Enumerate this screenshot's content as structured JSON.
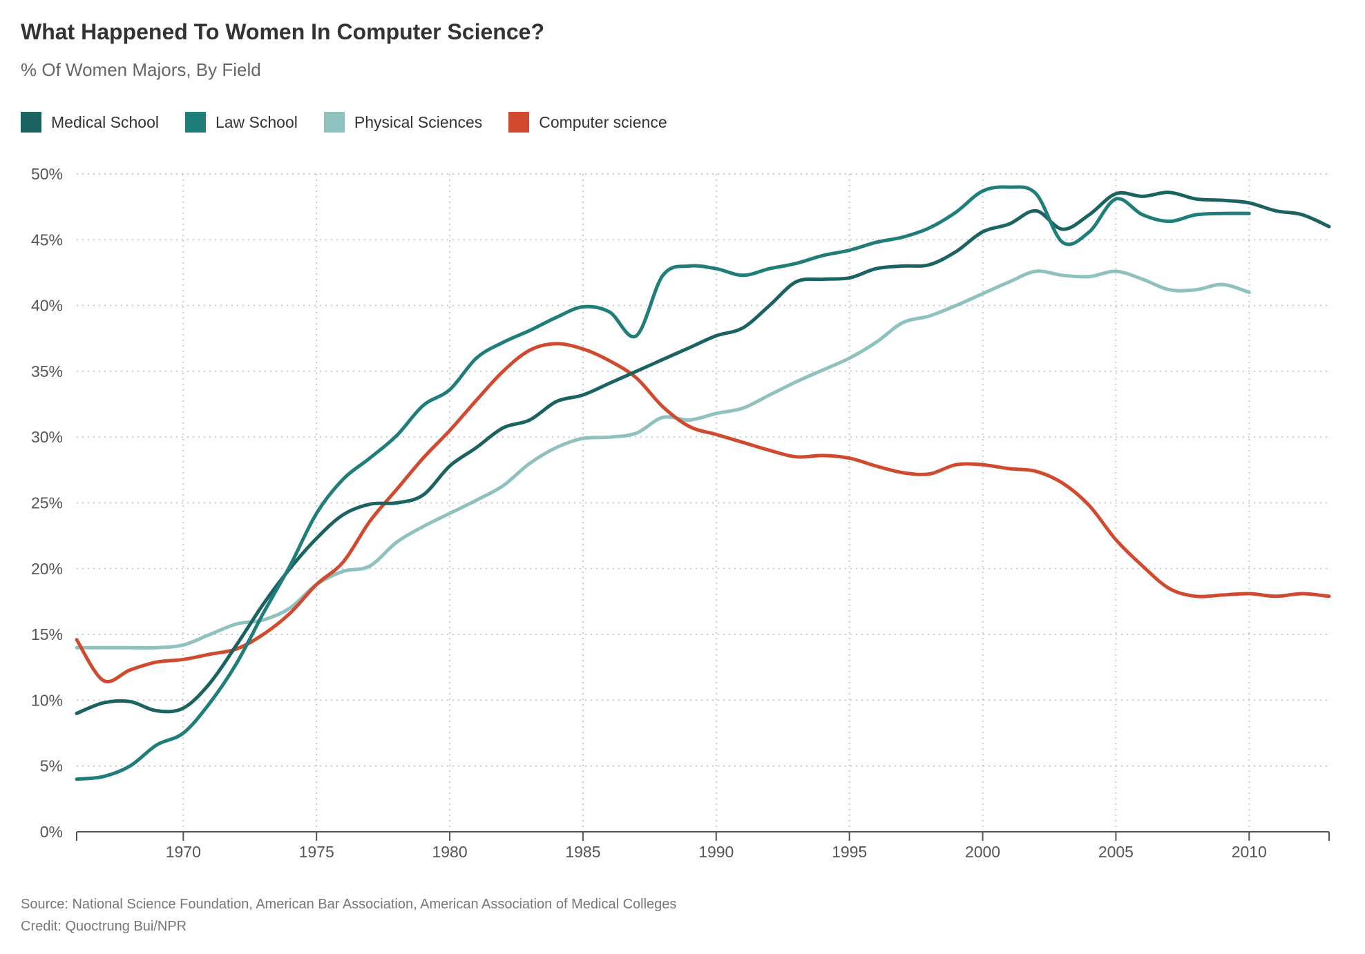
{
  "header": {
    "title": "What Happened To Women In Computer Science?",
    "subtitle": "% Of Women Majors, By Field"
  },
  "legend": [
    {
      "label": "Medical School",
      "color": "#1b6360"
    },
    {
      "label": "Law School",
      "color": "#1f7d7a"
    },
    {
      "label": "Physical Sciences",
      "color": "#8fc1bf"
    },
    {
      "label": "Computer science",
      "color": "#d04a2f"
    }
  ],
  "footer": {
    "source": "Source: National Science Foundation, American Bar Association, American Association of Medical Colleges",
    "credit": "Credit: Quoctrung Bui/NPR"
  },
  "chart_data": {
    "type": "line",
    "title": "What Happened To Women In Computer Science?",
    "subtitle": "% Of Women Majors, By Field",
    "xlabel": "",
    "ylabel": "",
    "xlim": [
      1966,
      2013
    ],
    "ylim": [
      0,
      50
    ],
    "x_ticks": [
      1970,
      1975,
      1980,
      1985,
      1990,
      1995,
      2000,
      2005,
      2010
    ],
    "y_ticks": [
      0,
      5,
      10,
      15,
      20,
      25,
      30,
      35,
      40,
      45,
      50
    ],
    "y_tick_labels": [
      "0%",
      "5%",
      "10%",
      "15%",
      "20%",
      "25%",
      "30%",
      "35%",
      "40%",
      "45%",
      "50%"
    ],
    "grid": true,
    "legend_position": "top-left",
    "series": [
      {
        "name": "Medical School",
        "color": "#1b6360",
        "x": [
          1966,
          1967,
          1968,
          1969,
          1970,
          1971,
          1972,
          1973,
          1974,
          1975,
          1976,
          1977,
          1978,
          1979,
          1980,
          1981,
          1982,
          1983,
          1984,
          1985,
          1986,
          1987,
          1988,
          1989,
          1990,
          1991,
          1992,
          1993,
          1994,
          1995,
          1996,
          1997,
          1998,
          1999,
          2000,
          2001,
          2002,
          2003,
          2004,
          2005,
          2006,
          2007,
          2008,
          2009,
          2010,
          2011,
          2012,
          2013
        ],
        "y": [
          9.0,
          9.8,
          9.9,
          9.2,
          9.4,
          11.3,
          14.2,
          17.3,
          20.0,
          22.3,
          24.1,
          24.9,
          25.0,
          25.6,
          27.8,
          29.2,
          30.7,
          31.3,
          32.7,
          33.2,
          34.1,
          35.0,
          35.9,
          36.8,
          37.7,
          38.3,
          40.0,
          41.8,
          42.0,
          42.1,
          42.8,
          43.0,
          43.1,
          44.1,
          45.6,
          46.2,
          47.2,
          45.8,
          46.9,
          48.5,
          48.3,
          48.6,
          48.1,
          48.0,
          47.8,
          47.2,
          46.9,
          46.0
        ]
      },
      {
        "name": "Law School",
        "color": "#1f7d7a",
        "x": [
          1966,
          1967,
          1968,
          1969,
          1970,
          1971,
          1972,
          1973,
          1974,
          1975,
          1976,
          1977,
          1978,
          1979,
          1980,
          1981,
          1982,
          1983,
          1984,
          1985,
          1986,
          1987,
          1988,
          1989,
          1990,
          1991,
          1992,
          1993,
          1994,
          1995,
          1996,
          1997,
          1998,
          1999,
          2000,
          2001,
          2002,
          2003,
          2004,
          2005,
          2006,
          2007,
          2008,
          2009,
          2010
        ],
        "y": [
          4.0,
          4.2,
          5.0,
          6.6,
          7.5,
          9.8,
          12.8,
          16.6,
          20.2,
          24.2,
          26.8,
          28.4,
          30.1,
          32.4,
          33.6,
          36.0,
          37.2,
          38.1,
          39.1,
          39.9,
          39.5,
          37.7,
          42.3,
          43.0,
          42.8,
          42.3,
          42.8,
          43.2,
          43.8,
          44.2,
          44.8,
          45.2,
          45.9,
          47.1,
          48.7,
          49.0,
          48.5,
          44.8,
          45.6,
          48.1,
          46.9,
          46.4,
          46.9,
          47.0,
          47.0
        ]
      },
      {
        "name": "Physical Sciences",
        "color": "#8fc1bf",
        "x": [
          1966,
          1967,
          1968,
          1969,
          1970,
          1971,
          1972,
          1973,
          1974,
          1975,
          1976,
          1977,
          1978,
          1979,
          1980,
          1981,
          1982,
          1983,
          1984,
          1985,
          1986,
          1987,
          1988,
          1989,
          1990,
          1991,
          1992,
          1993,
          1994,
          1995,
          1996,
          1997,
          1998,
          1999,
          2000,
          2001,
          2002,
          2003,
          2004,
          2005,
          2006,
          2007,
          2008,
          2009,
          2010
        ],
        "y": [
          14.0,
          14.0,
          14.0,
          14.0,
          14.2,
          15.0,
          15.8,
          16.1,
          17.0,
          18.8,
          19.8,
          20.2,
          22.0,
          23.2,
          24.2,
          25.2,
          26.3,
          28.0,
          29.2,
          29.9,
          30.0,
          30.3,
          31.5,
          31.3,
          31.8,
          32.2,
          33.2,
          34.2,
          35.1,
          36.0,
          37.2,
          38.7,
          39.2,
          40.0,
          40.9,
          41.8,
          42.6,
          42.3,
          42.2,
          42.6,
          42.0,
          41.2,
          41.2,
          41.6,
          41.0
        ]
      },
      {
        "name": "Computer science",
        "color": "#d04a2f",
        "x": [
          1966,
          1967,
          1968,
          1969,
          1970,
          1971,
          1972,
          1973,
          1974,
          1975,
          1976,
          1977,
          1978,
          1979,
          1980,
          1981,
          1982,
          1983,
          1984,
          1985,
          1986,
          1987,
          1988,
          1989,
          1990,
          1991,
          1992,
          1993,
          1994,
          1995,
          1996,
          1997,
          1998,
          1999,
          2000,
          2001,
          2002,
          2003,
          2004,
          2005,
          2006,
          2007,
          2008,
          2009,
          2010,
          2011,
          2012,
          2013
        ],
        "y": [
          14.6,
          11.5,
          12.3,
          12.9,
          13.1,
          13.5,
          13.9,
          15.0,
          16.6,
          18.8,
          20.5,
          23.6,
          26.0,
          28.4,
          30.5,
          32.8,
          35.0,
          36.6,
          37.1,
          36.7,
          35.8,
          34.5,
          32.3,
          30.8,
          30.2,
          29.6,
          29.0,
          28.5,
          28.6,
          28.4,
          27.8,
          27.3,
          27.2,
          27.9,
          27.9,
          27.6,
          27.4,
          26.5,
          24.8,
          22.2,
          20.2,
          18.5,
          17.9,
          18.0,
          18.1,
          17.9,
          18.1,
          17.9
        ]
      }
    ]
  }
}
